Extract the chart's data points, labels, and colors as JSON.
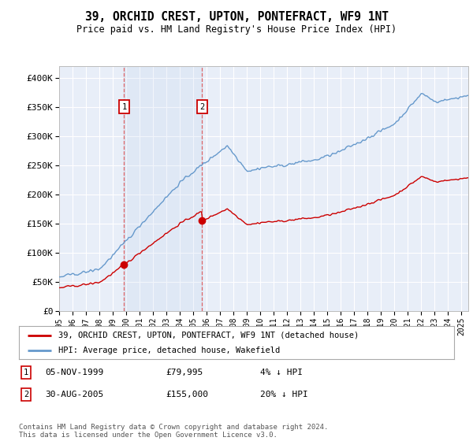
{
  "title": "39, ORCHID CREST, UPTON, PONTEFRACT, WF9 1NT",
  "subtitle": "Price paid vs. HM Land Registry's House Price Index (HPI)",
  "ylim": [
    0,
    420000
  ],
  "yticks": [
    0,
    50000,
    100000,
    150000,
    200000,
    250000,
    300000,
    350000,
    400000
  ],
  "ytick_labels": [
    "£0",
    "£50K",
    "£100K",
    "£150K",
    "£200K",
    "£250K",
    "£300K",
    "£350K",
    "£400K"
  ],
  "background_color": "#ffffff",
  "plot_bg_color": "#e8eef8",
  "grid_color": "#ffffff",
  "hpi_color": "#6699cc",
  "price_color": "#cc0000",
  "sale1_date": 1999.84,
  "sale1_price": 79995,
  "sale1_label": "1",
  "sale2_date": 2005.66,
  "sale2_price": 155000,
  "sale2_label": "2",
  "legend_line1": "39, ORCHID CREST, UPTON, PONTEFRACT, WF9 1NT (detached house)",
  "legend_line2": "HPI: Average price, detached house, Wakefield",
  "table_row1": [
    "1",
    "05-NOV-1999",
    "£79,995",
    "4% ↓ HPI"
  ],
  "table_row2": [
    "2",
    "30-AUG-2005",
    "£155,000",
    "20% ↓ HPI"
  ],
  "footnote": "Contains HM Land Registry data © Crown copyright and database right 2024.\nThis data is licensed under the Open Government Licence v3.0.",
  "xmin": 1995.0,
  "xmax": 2025.5
}
